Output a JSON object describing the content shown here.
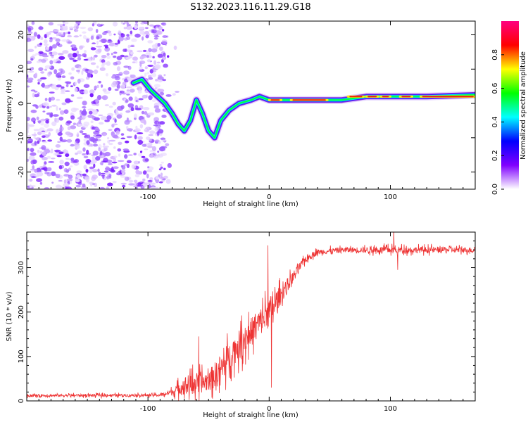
{
  "title": "S132.2023.116.11.29.G18",
  "chart_data": [
    {
      "type": "heatmap",
      "xlabel": "Height of straight line (km)",
      "ylabel": "Frequency (Hz)",
      "xlim": [
        -200,
        170
      ],
      "ylim": [
        -25,
        24
      ],
      "xticks": [
        -100,
        0,
        100
      ],
      "xtick_labels": [
        "-100",
        "0",
        "100"
      ],
      "yticks": [
        -20,
        -10,
        0,
        10,
        20
      ],
      "ytick_labels": [
        "-20",
        "-10",
        "0",
        "10",
        "20"
      ],
      "noise_region_x": [
        -200,
        -85
      ],
      "ridge_points": [
        {
          "x": -112,
          "y": 6
        },
        {
          "x": -105,
          "y": 7
        },
        {
          "x": -98,
          "y": 4
        },
        {
          "x": -92,
          "y": 2
        },
        {
          "x": -86,
          "y": 0
        },
        {
          "x": -80,
          "y": -3
        },
        {
          "x": -75,
          "y": -6
        },
        {
          "x": -70,
          "y": -8
        },
        {
          "x": -65,
          "y": -5
        },
        {
          "x": -60,
          "y": 1
        },
        {
          "x": -55,
          "y": -3
        },
        {
          "x": -50,
          "y": -8
        },
        {
          "x": -45,
          "y": -10
        },
        {
          "x": -40,
          "y": -5
        },
        {
          "x": -33,
          "y": -2
        },
        {
          "x": -25,
          "y": 0
        },
        {
          "x": -15,
          "y": 1
        },
        {
          "x": -8,
          "y": 2
        },
        {
          "x": 0,
          "y": 1
        },
        {
          "x": 30,
          "y": 1
        },
        {
          "x": 60,
          "y": 1
        },
        {
          "x": 80,
          "y": 2
        },
        {
          "x": 100,
          "y": 2
        },
        {
          "x": 130,
          "y": 2
        },
        {
          "x": 170,
          "y": 2.5
        }
      ],
      "colorbar": {
        "label": "Normalized spectral amplitude",
        "range": [
          0,
          1
        ],
        "ticks": [
          0.0,
          0.2,
          0.4,
          0.6,
          0.8
        ],
        "tick_labels": [
          "0.0",
          "0.2",
          "0.4",
          "0.6",
          "0.8"
        ],
        "colors": [
          "#ffffff",
          "#8000ff",
          "#0000ff",
          "#00ffff",
          "#00ff00",
          "#ffff00",
          "#ff0000",
          "#ff0080"
        ]
      }
    },
    {
      "type": "line",
      "xlabel": "Height of straight line (km)",
      "ylabel": "SNR (10 * v/v)",
      "xlim": [
        -200,
        170
      ],
      "ylim": [
        0,
        380
      ],
      "xticks": [
        -100,
        0,
        100
      ],
      "xtick_labels": [
        "-100",
        "0",
        "100"
      ],
      "yticks": [
        0,
        100,
        200,
        300
      ],
      "ytick_labels": [
        "0",
        "100",
        "200",
        "300"
      ],
      "color": "#ee3333",
      "envelope": {
        "x": [
          -200,
          -90,
          -80,
          -70,
          -60,
          -50,
          -40,
          -30,
          -20,
          -10,
          0,
          10,
          20,
          30,
          40,
          60,
          100,
          170
        ],
        "mean": [
          12,
          13,
          20,
          35,
          40,
          45,
          70,
          110,
          140,
          170,
          200,
          240,
          280,
          320,
          335,
          340,
          340,
          340
        ],
        "amplitude": [
          6,
          6,
          15,
          40,
          50,
          45,
          70,
          60,
          70,
          60,
          70,
          40,
          25,
          15,
          12,
          12,
          15,
          12
        ]
      },
      "spikes": [
        {
          "x": -58,
          "y": 145
        },
        {
          "x": -1,
          "y": 350
        },
        {
          "x": 2,
          "y": 30
        },
        {
          "x": 103,
          "y": 385
        },
        {
          "x": 106,
          "y": 295
        }
      ]
    }
  ]
}
